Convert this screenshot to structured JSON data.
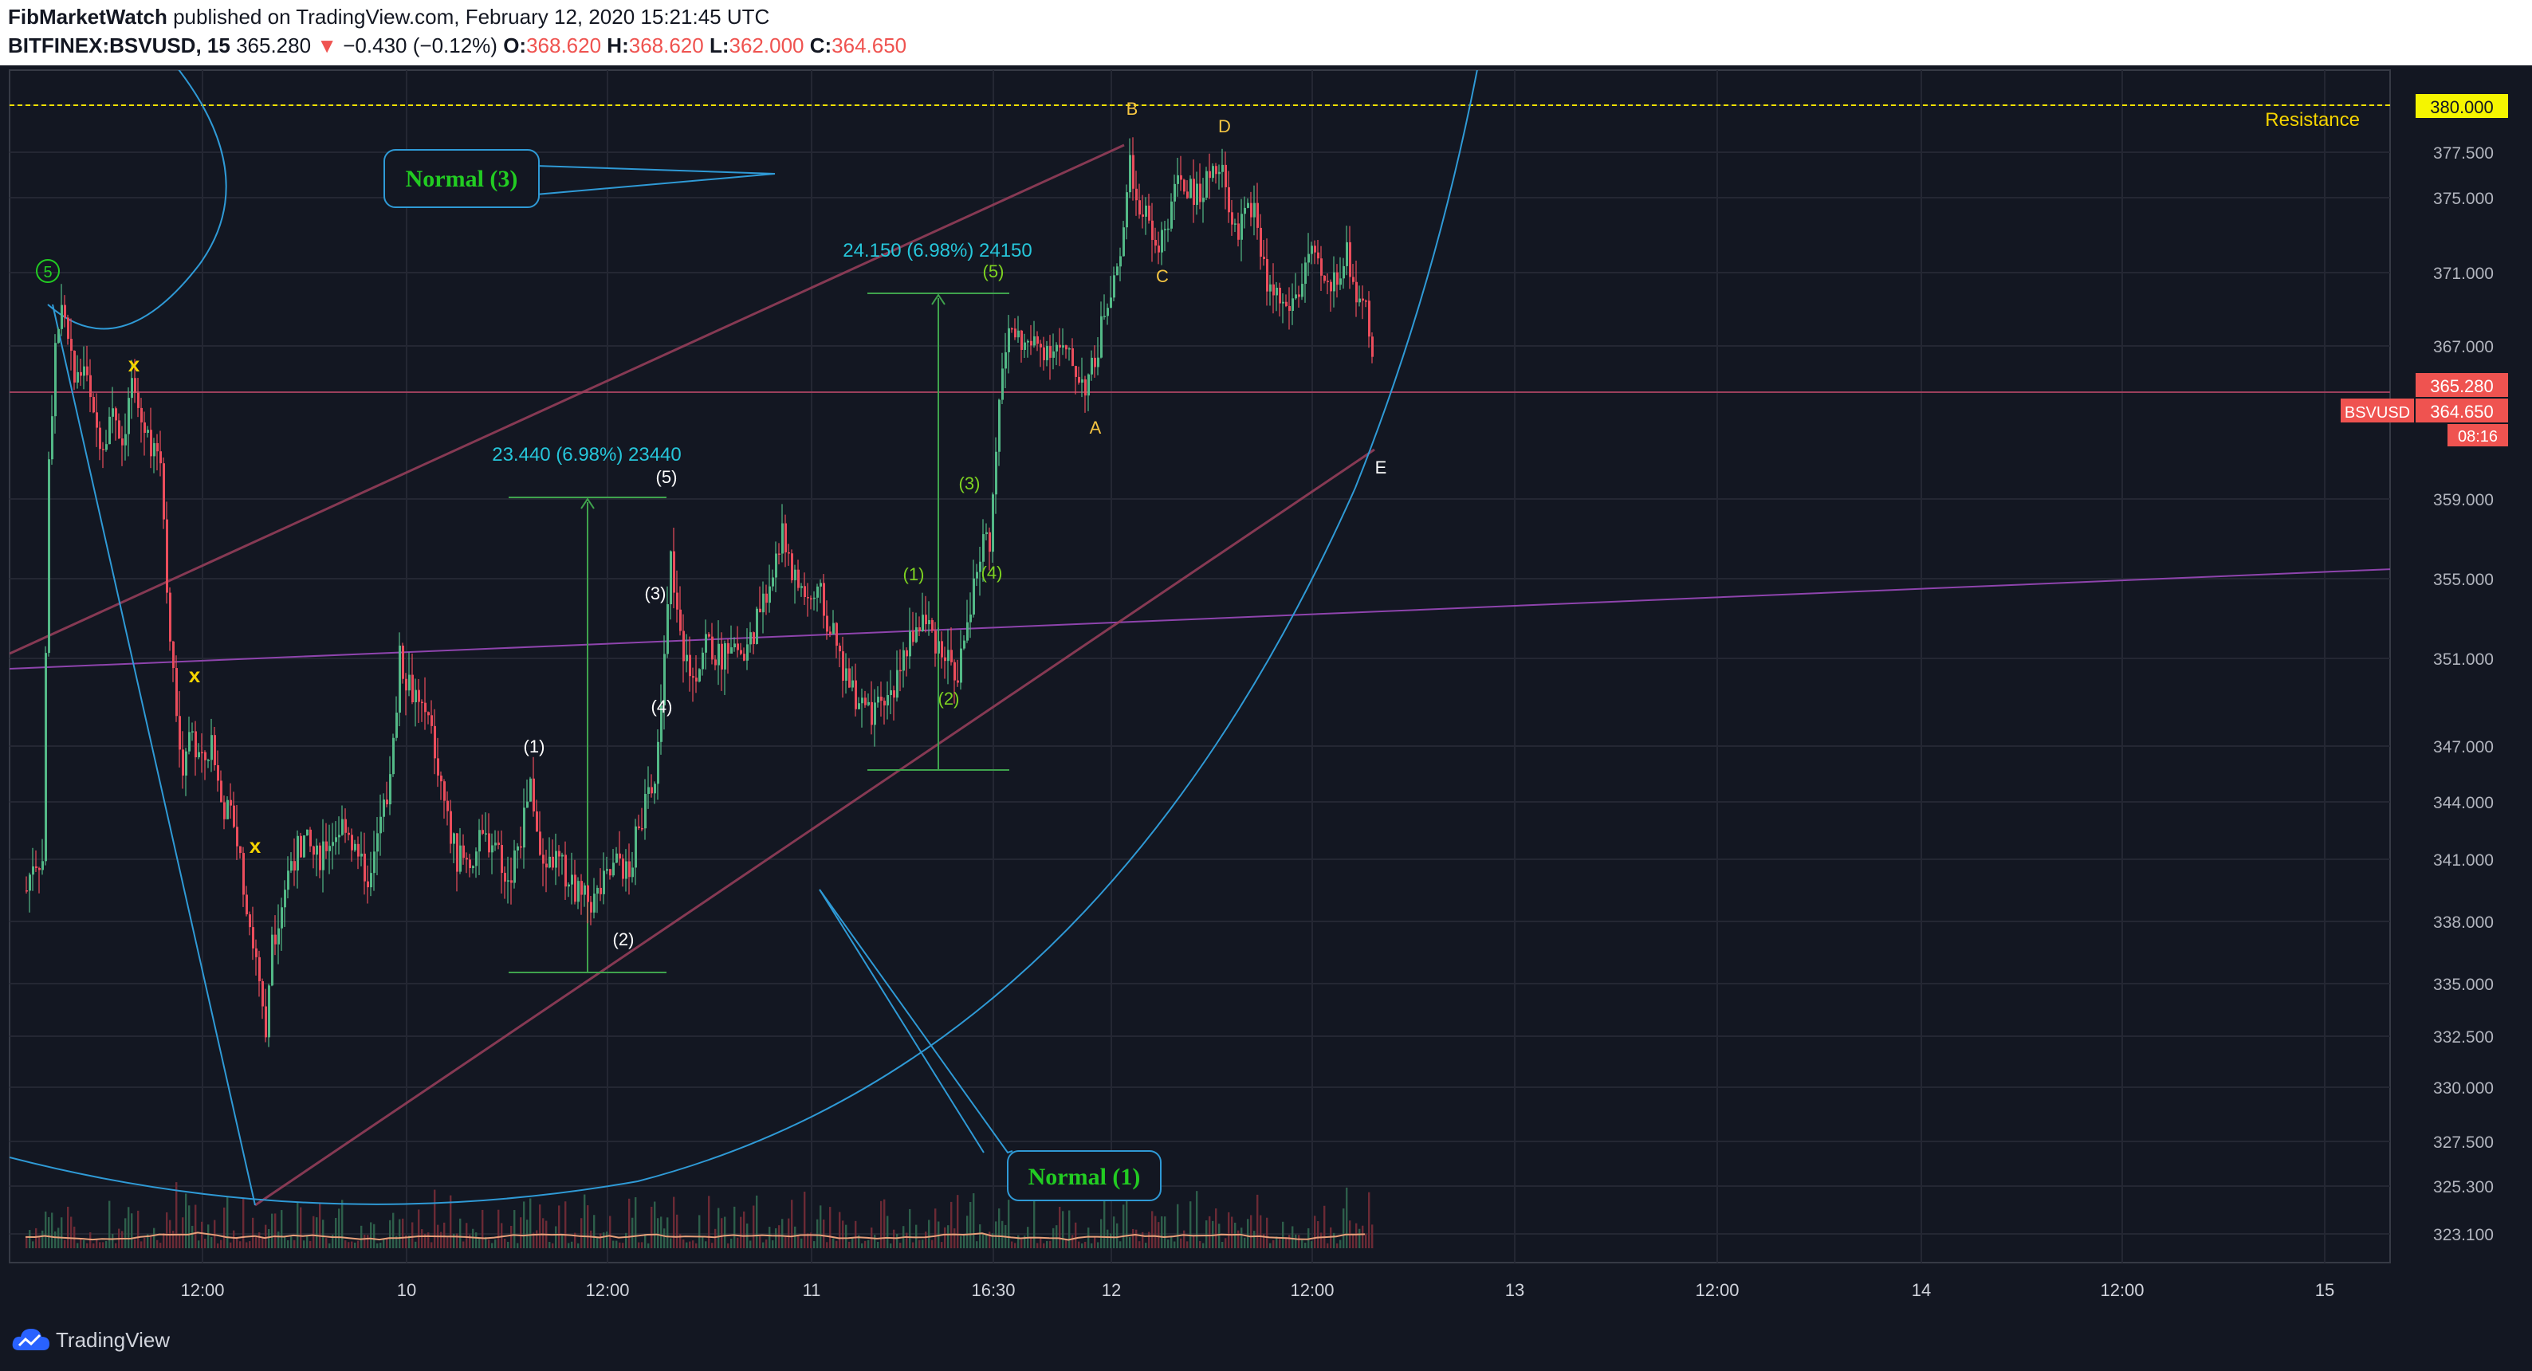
{
  "header": {
    "publisher": "FibMarketWatch",
    "published_text": "published on TradingView.com, February 12, 2020 15:21:45 UTC",
    "symbol": "BITFINEX:BSVUSD, 15",
    "last_price": "365.280",
    "change": "−0.430 (−0.12%)",
    "change_arrow": "▼",
    "o_label": "O:",
    "o_value": "368.620",
    "h_label": "H:",
    "h_value": "368.620",
    "l_label": "L:",
    "l_value": "362.000",
    "c_label": "C:",
    "c_value": "364.650"
  },
  "footer": {
    "brand": "TradingView"
  },
  "chart_data": {
    "type": "candlestick",
    "symbol": "BSVUSD",
    "y_ticks": [
      "380.000",
      "377.500",
      "375.000",
      "371.000",
      "367.000",
      "359.000",
      "355.000",
      "351.000",
      "347.000",
      "344.000",
      "341.000",
      "338.000",
      "335.000",
      "332.500",
      "330.000",
      "327.500",
      "325.300",
      "323.100"
    ],
    "x_ticks": [
      "12:00",
      "10",
      "12:00",
      "11",
      "16:30",
      "12",
      "12:00",
      "13",
      "12:00",
      "14",
      "12:00",
      "15"
    ],
    "price_labels": {
      "resistance_value": "380.000",
      "resistance_text": "Resistance",
      "last": "365.280",
      "close": "364.650",
      "symbol_tag": "BSVUSD",
      "countdown": "08:16"
    },
    "close_path": [
      [
        10,
        339.5
      ],
      [
        14,
        341
      ],
      [
        20,
        341
      ],
      [
        24,
        361
      ],
      [
        28,
        367
      ],
      [
        32,
        369
      ],
      [
        36,
        367
      ],
      [
        40,
        365
      ],
      [
        46,
        366
      ],
      [
        52,
        363
      ],
      [
        58,
        362
      ],
      [
        64,
        364
      ],
      [
        70,
        362
      ],
      [
        76,
        365
      ],
      [
        82,
        363
      ],
      [
        88,
        362
      ],
      [
        94,
        361
      ],
      [
        100,
        352
      ],
      [
        104,
        348
      ],
      [
        108,
        346
      ],
      [
        112,
        348
      ],
      [
        116,
        347
      ],
      [
        120,
        346
      ],
      [
        126,
        347
      ],
      [
        132,
        344
      ],
      [
        140,
        343
      ],
      [
        148,
        339
      ],
      [
        154,
        336
      ],
      [
        160,
        332
      ],
      [
        164,
        337
      ],
      [
        170,
        339
      ],
      [
        176,
        341
      ],
      [
        184,
        342
      ],
      [
        192,
        341
      ],
      [
        200,
        342
      ],
      [
        210,
        343
      ],
      [
        218,
        341
      ],
      [
        226,
        340
      ],
      [
        232,
        343
      ],
      [
        238,
        345
      ],
      [
        244,
        351
      ],
      [
        250,
        350
      ],
      [
        256,
        349
      ],
      [
        262,
        348
      ],
      [
        268,
        346
      ],
      [
        274,
        343
      ],
      [
        280,
        341
      ],
      [
        288,
        341
      ],
      [
        296,
        342
      ],
      [
        304,
        342
      ],
      [
        312,
        340
      ],
      [
        320,
        342
      ],
      [
        326,
        345
      ],
      [
        334,
        341
      ],
      [
        342,
        341
      ],
      [
        350,
        340
      ],
      [
        358,
        339
      ],
      [
        366,
        339
      ],
      [
        374,
        340
      ],
      [
        382,
        341
      ],
      [
        388,
        340
      ],
      [
        392,
        342
      ],
      [
        398,
        344
      ],
      [
        404,
        345
      ],
      [
        410,
        351
      ],
      [
        414,
        356
      ],
      [
        420,
        352
      ],
      [
        428,
        350
      ],
      [
        436,
        352
      ],
      [
        444,
        351
      ],
      [
        452,
        352
      ],
      [
        460,
        351
      ],
      [
        468,
        353
      ],
      [
        476,
        355
      ],
      [
        484,
        357
      ],
      [
        492,
        355
      ],
      [
        500,
        354
      ],
      [
        508,
        354
      ],
      [
        516,
        352
      ],
      [
        524,
        350
      ],
      [
        532,
        349
      ],
      [
        540,
        348
      ],
      [
        548,
        349
      ],
      [
        556,
        350
      ],
      [
        564,
        352
      ],
      [
        572,
        353
      ],
      [
        580,
        352
      ],
      [
        588,
        351
      ],
      [
        594,
        350
      ],
      [
        598,
        352
      ],
      [
        604,
        355
      ],
      [
        610,
        357
      ],
      [
        614,
        357
      ],
      [
        618,
        361
      ],
      [
        622,
        366
      ],
      [
        628,
        368
      ],
      [
        636,
        367
      ],
      [
        646,
        367
      ],
      [
        656,
        367
      ],
      [
        666,
        366
      ],
      [
        674,
        365
      ],
      [
        680,
        366
      ],
      [
        686,
        369
      ],
      [
        692,
        371
      ],
      [
        698,
        373
      ],
      [
        702,
        377
      ],
      [
        706,
        375
      ],
      [
        712,
        374
      ],
      [
        718,
        372
      ],
      [
        726,
        374
      ],
      [
        734,
        376
      ],
      [
        742,
        375
      ],
      [
        750,
        376
      ],
      [
        756,
        377
      ],
      [
        762,
        376
      ],
      [
        768,
        373
      ],
      [
        774,
        374
      ],
      [
        780,
        375
      ],
      [
        786,
        371
      ],
      [
        792,
        370
      ],
      [
        800,
        369
      ],
      [
        808,
        370
      ],
      [
        814,
        372
      ],
      [
        820,
        371
      ],
      [
        826,
        370
      ],
      [
        832,
        371
      ],
      [
        838,
        372
      ],
      [
        844,
        370
      ],
      [
        850,
        369
      ],
      [
        854,
        366
      ],
      [
        856,
        365
      ]
    ]
  },
  "annotations": {
    "normal3": "Normal (3)",
    "normal1": "Normal (1)",
    "measure1": "23.440 (6.98%) 23440",
    "measure2": "24.150 (6.98%) 24150",
    "wave_top_circle": "5",
    "white_waves": [
      "(1)",
      "(2)",
      "(3)",
      "(4)",
      "(5)"
    ],
    "green_waves": [
      "(1)",
      "(2)",
      "(3)",
      "(4)",
      "(5)"
    ],
    "abcde": [
      "A",
      "B",
      "C",
      "D",
      "E"
    ],
    "x_marks": [
      "x",
      "x",
      "x"
    ]
  }
}
